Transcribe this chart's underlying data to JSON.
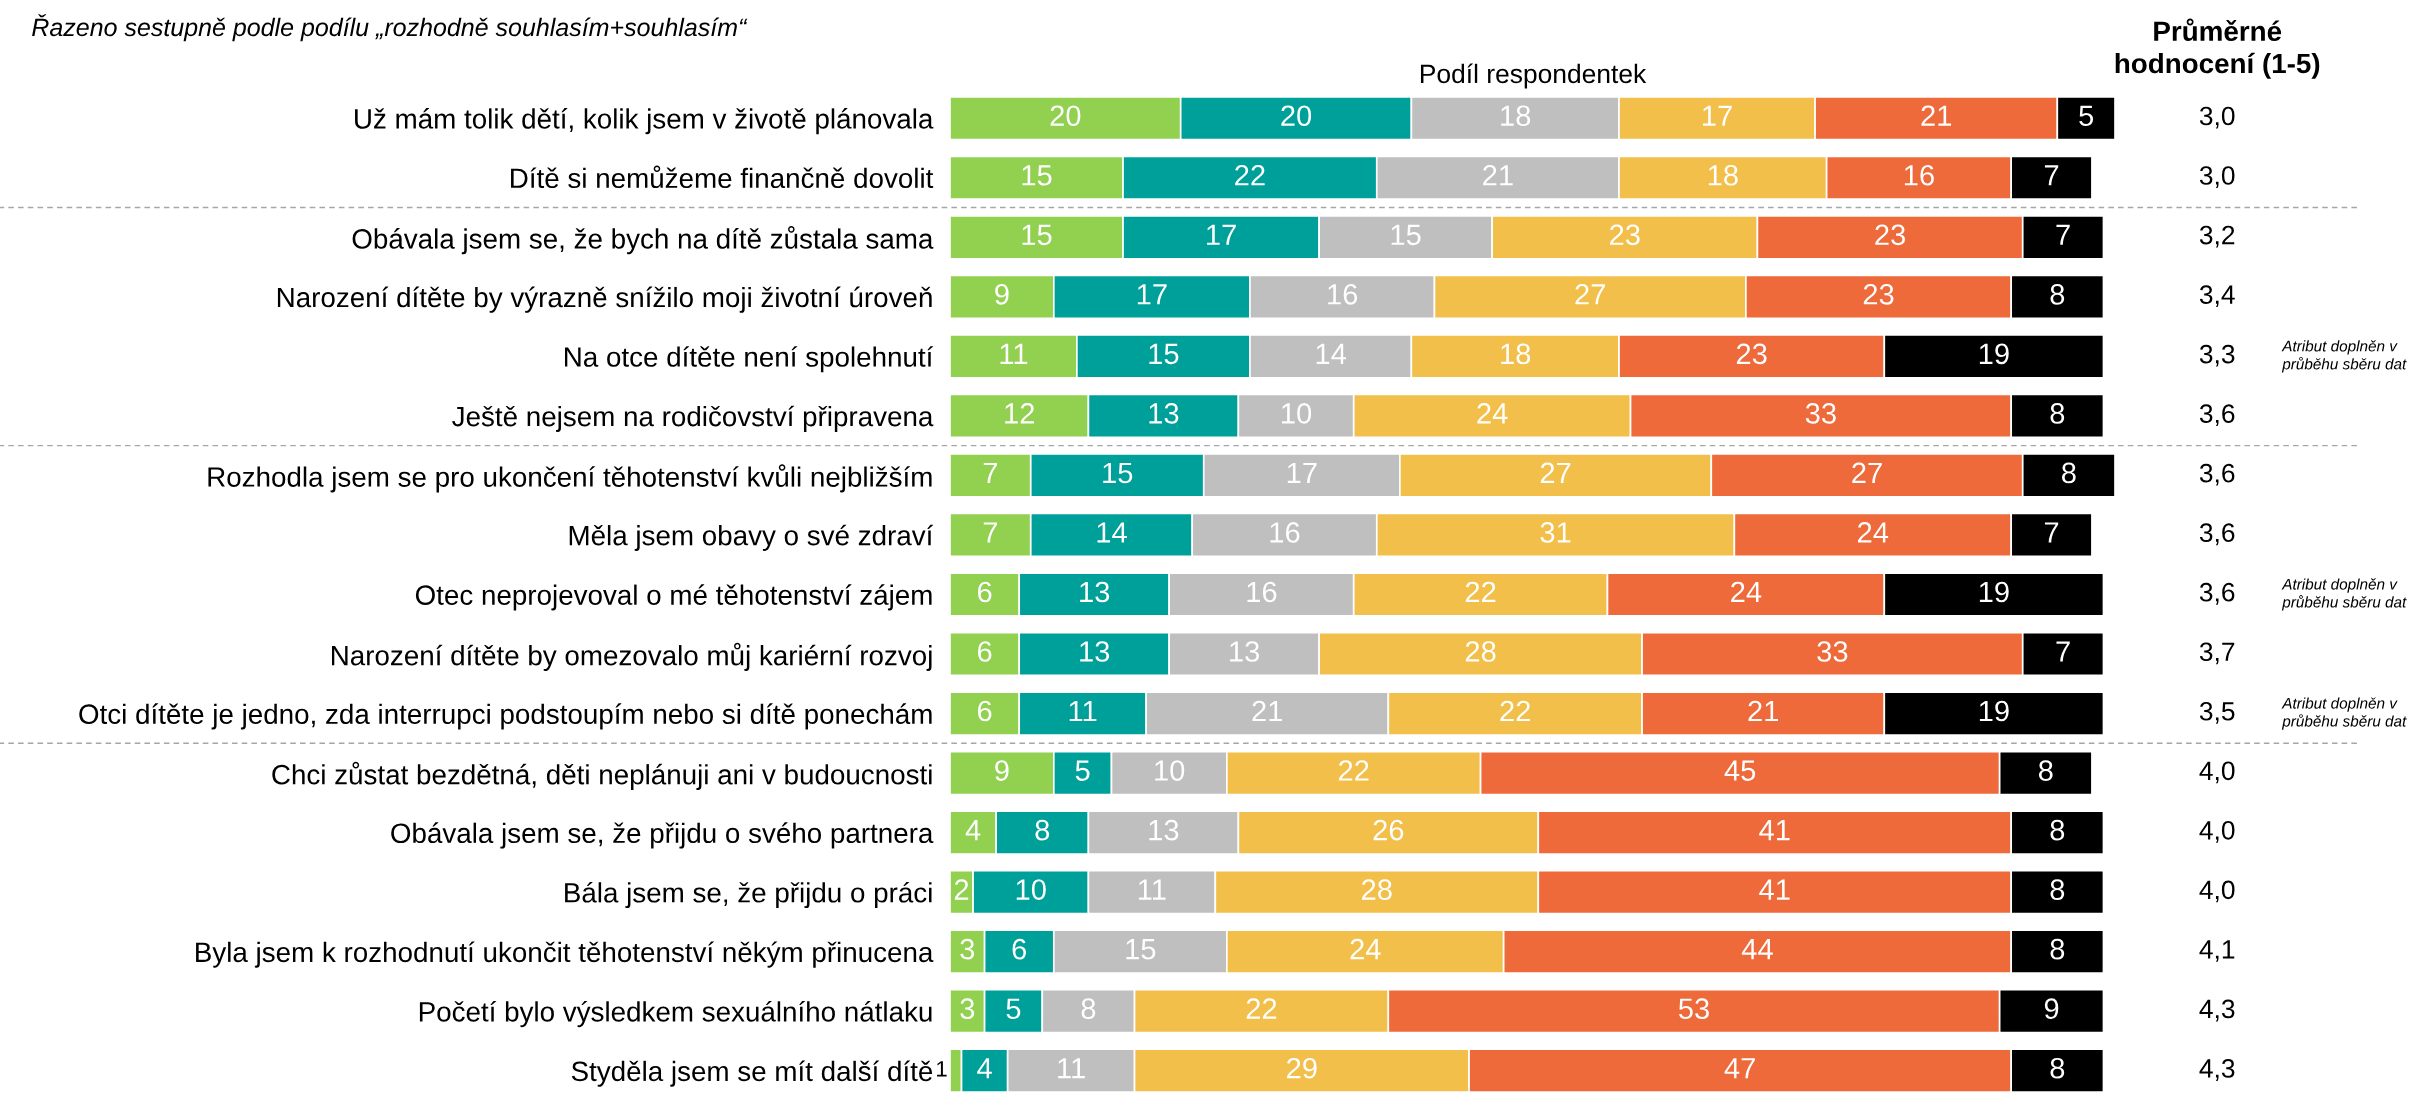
{
  "chart_data": {
    "type": "bar",
    "orientation": "horizontal",
    "stacked": true,
    "data_labels": true,
    "legend": false,
    "grid": false,
    "subtitle": "Řazeno sestupně podle podílu „rozhodně souhlasím+souhlasím“",
    "xlabel": "Podíl respondentek",
    "categories": [
      "Už mám tolik dětí, kolik jsem v životě plánovala",
      "Dítě si nemůžeme finančně dovolit",
      "Obávala jsem se, že bych na dítě zůstala sama",
      "Narození dítěte by výrazně snížilo moji životní úroveň",
      "Na otce dítěte není spolehnutí",
      "Ještě nejsem na rodičovství připravena",
      "Rozhodla jsem se pro ukončení těhotenství kvůli nejbližším",
      "Měla jsem obavy o své zdraví",
      "Otec neprojevoval o mé těhotenství zájem",
      "Narození dítěte by omezovalo můj kariérní rozvoj",
      "Otci dítěte je jedno, zda interrupci podstoupím nebo si dítě ponechám",
      "Chci zůstat bezdětná, děti neplánuji ani v budoucnosti",
      "Obávala jsem se, že přijdu o svého partnera",
      "Bála jsem se, že přijdu o práci",
      "Byla jsem k rozhodnutí ukončit těhotenství někým přinucena",
      "Početí bylo výsledkem sexuálního nátlaku",
      "Styděla jsem se mít další dítě"
    ],
    "series": [
      {
        "color": "#92d050",
        "values": [
          20,
          15,
          15,
          9,
          11,
          12,
          7,
          7,
          6,
          6,
          6,
          9,
          4,
          2,
          3,
          3,
          1
        ]
      },
      {
        "color": "#00a09a",
        "values": [
          20,
          22,
          17,
          17,
          15,
          13,
          15,
          14,
          13,
          13,
          11,
          5,
          8,
          10,
          6,
          5,
          4
        ]
      },
      {
        "color": "#bfbfbf",
        "values": [
          18,
          21,
          15,
          16,
          14,
          10,
          17,
          16,
          16,
          13,
          21,
          10,
          13,
          11,
          15,
          8,
          11
        ]
      },
      {
        "color": "#f2bf4a",
        "values": [
          17,
          18,
          23,
          27,
          18,
          24,
          27,
          31,
          22,
          28,
          22,
          22,
          26,
          28,
          24,
          22,
          29
        ]
      },
      {
        "color": "#ee6a3a",
        "values": [
          21,
          16,
          23,
          23,
          23,
          33,
          27,
          24,
          24,
          33,
          21,
          45,
          41,
          41,
          44,
          53,
          47
        ]
      },
      {
        "color": "#000000",
        "values": [
          5,
          7,
          7,
          8,
          19,
          8,
          8,
          7,
          19,
          7,
          19,
          8,
          8,
          8,
          8,
          9,
          8
        ]
      }
    ],
    "annotations": [
      "Průměrné\nhodnocení (1-5)",
      "3,0",
      "3,0",
      "3,2",
      "3,4",
      "3,3",
      "Atribut doplněn v\nprůběhu sběru dat",
      "3,6",
      "3,6",
      "3,6",
      "3,6",
      "Atribut doplněn v\nprůběhu sběru dat",
      "3,7",
      "3,5",
      "Atribut doplněn v\nprůběhu sběru dat",
      "4,0",
      "4,0",
      "4,0",
      "4,1",
      "4,3",
      "4,3"
    ]
  }
}
